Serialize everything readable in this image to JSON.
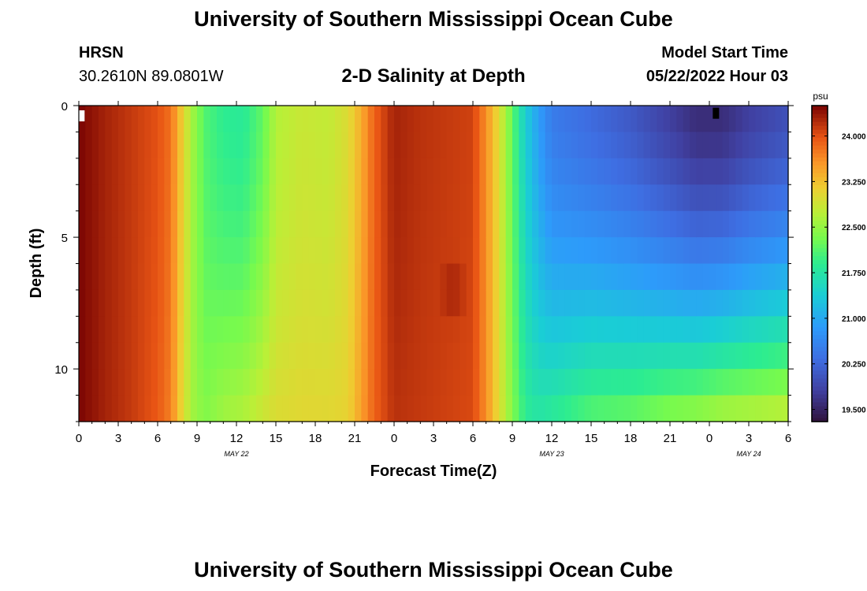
{
  "header": {
    "title": "University of Southern Mississippi Ocean Cube",
    "station": "HRSN",
    "coordinates": "30.2610N  89.0801W",
    "subtitle": "2-D Salinity at Depth",
    "model_start_label": "Model Start Time",
    "model_start_value": "05/22/2022 Hour 03"
  },
  "footer": {
    "title": "University of Southern Mississippi Ocean Cube"
  },
  "chart_data": {
    "type": "heatmap",
    "title": "2-D Salinity at Depth",
    "xlabel": "Forecast Time(Z)",
    "ylabel": "Depth (ft)",
    "x_range_hours": [
      0,
      54
    ],
    "x_ticks": [
      {
        "hour": 0,
        "label": "0"
      },
      {
        "hour": 3,
        "label": "3"
      },
      {
        "hour": 6,
        "label": "6"
      },
      {
        "hour": 9,
        "label": "9"
      },
      {
        "hour": 12,
        "label": "12"
      },
      {
        "hour": 15,
        "label": "15"
      },
      {
        "hour": 18,
        "label": "18"
      },
      {
        "hour": 21,
        "label": "21"
      },
      {
        "hour": 24,
        "label": "0"
      },
      {
        "hour": 27,
        "label": "3"
      },
      {
        "hour": 30,
        "label": "6"
      },
      {
        "hour": 33,
        "label": "9"
      },
      {
        "hour": 36,
        "label": "12"
      },
      {
        "hour": 39,
        "label": "15"
      },
      {
        "hour": 42,
        "label": "18"
      },
      {
        "hour": 45,
        "label": "21"
      },
      {
        "hour": 48,
        "label": "0"
      },
      {
        "hour": 51,
        "label": "3"
      },
      {
        "hour": 54,
        "label": "6"
      }
    ],
    "date_labels": [
      {
        "hour": 12,
        "label": "MAY 22"
      },
      {
        "hour": 36,
        "label": "MAY 23"
      },
      {
        "hour": 51,
        "label": "MAY 24"
      }
    ],
    "y_range_ft": [
      0,
      12
    ],
    "y_ticks": [
      {
        "depth": 0,
        "label": "0"
      },
      {
        "depth": 5,
        "label": "5"
      },
      {
        "depth": 10,
        "label": "10"
      }
    ],
    "colorbar": {
      "unit": "psu",
      "vmin": 19.3,
      "vmax": 24.5,
      "ticks": [
        "24.000",
        "23.250",
        "22.500",
        "21.750",
        "21.000",
        "20.250",
        "19.500"
      ],
      "tick_values": [
        24.0,
        23.25,
        22.5,
        21.75,
        21.0,
        20.25,
        19.5
      ]
    },
    "timeline": [
      {
        "hour": 0,
        "surface": 24.5,
        "bottom": 24.5
      },
      {
        "hour": 2,
        "surface": 24.3,
        "bottom": 24.3
      },
      {
        "hour": 4,
        "surface": 24.15,
        "bottom": 24.15
      },
      {
        "hour": 6,
        "surface": 24.0,
        "bottom": 23.95
      },
      {
        "hour": 7,
        "surface": 23.8,
        "bottom": 23.7
      },
      {
        "hour": 7.8,
        "surface": 23.2,
        "bottom": 23.1
      },
      {
        "hour": 8.6,
        "surface": 22.6,
        "bottom": 22.6
      },
      {
        "hour": 9.6,
        "surface": 22.1,
        "bottom": 22.4
      },
      {
        "hour": 11,
        "surface": 21.9,
        "bottom": 22.6
      },
      {
        "hour": 12.5,
        "surface": 21.85,
        "bottom": 22.7
      },
      {
        "hour": 14,
        "surface": 22.2,
        "bottom": 22.9
      },
      {
        "hour": 15,
        "surface": 22.7,
        "bottom": 23.0
      },
      {
        "hour": 17,
        "surface": 22.85,
        "bottom": 23.05
      },
      {
        "hour": 19,
        "surface": 22.8,
        "bottom": 23.05
      },
      {
        "hour": 20.5,
        "surface": 23.0,
        "bottom": 23.1
      },
      {
        "hour": 21.5,
        "surface": 23.4,
        "bottom": 23.5
      },
      {
        "hour": 22.5,
        "surface": 23.9,
        "bottom": 23.9
      },
      {
        "hour": 24,
        "surface": 24.3,
        "bottom": 24.2
      },
      {
        "hour": 26,
        "surface": 24.2,
        "bottom": 24.15
      },
      {
        "hour": 28,
        "surface": 24.15,
        "bottom": 24.1
      },
      {
        "hour": 30,
        "surface": 24.1,
        "bottom": 24.05
      },
      {
        "hour": 31,
        "surface": 23.6,
        "bottom": 23.6
      },
      {
        "hour": 32,
        "surface": 23.0,
        "bottom": 23.0
      },
      {
        "hour": 33,
        "surface": 22.2,
        "bottom": 22.4
      },
      {
        "hour": 34,
        "surface": 21.4,
        "bottom": 21.9
      },
      {
        "hour": 35,
        "surface": 20.9,
        "bottom": 21.8
      },
      {
        "hour": 36,
        "surface": 20.5,
        "bottom": 21.9
      },
      {
        "hour": 39,
        "surface": 20.3,
        "bottom": 22.2
      },
      {
        "hour": 42,
        "surface": 20.1,
        "bottom": 22.3
      },
      {
        "hour": 45,
        "surface": 19.8,
        "bottom": 22.5
      },
      {
        "hour": 47,
        "surface": 19.6,
        "bottom": 22.6
      },
      {
        "hour": 49,
        "surface": 19.6,
        "bottom": 22.75
      },
      {
        "hour": 51,
        "surface": 19.8,
        "bottom": 22.8
      },
      {
        "hour": 54,
        "surface": 20.0,
        "bottom": 22.9
      }
    ],
    "hotspot": {
      "hour_center": 28.5,
      "depth_center": 7.0,
      "delta": 0.2,
      "hour_radius": 1.2,
      "depth_radius": 1.6
    },
    "missing_cells": [
      {
        "hour": 0.2,
        "depth": 0.3,
        "value": "missing"
      },
      {
        "hour": 48.5,
        "depth": 0.2,
        "value": "missing"
      }
    ]
  }
}
